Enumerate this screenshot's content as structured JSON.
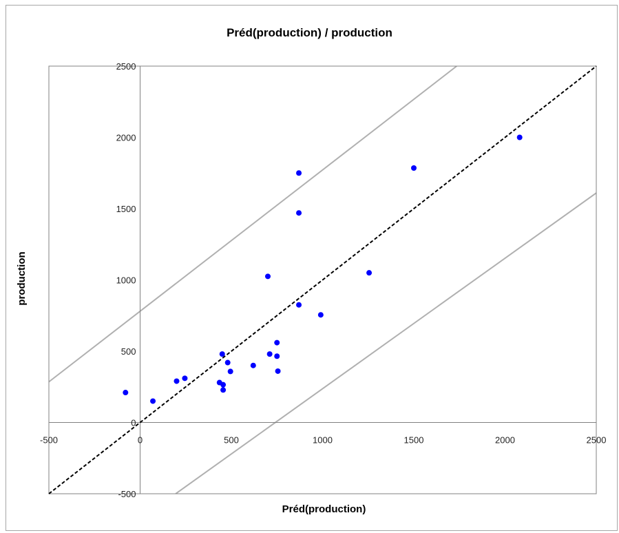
{
  "chart_data": {
    "type": "scatter",
    "title": "Préd(production) / production",
    "xlabel": "Préd(production)",
    "ylabel": "production",
    "xlim": [
      -500,
      2500
    ],
    "ylim": [
      -500,
      2500
    ],
    "xticks": [
      -500,
      0,
      500,
      1000,
      1500,
      2000,
      2500
    ],
    "yticks": [
      -500,
      0,
      500,
      1000,
      1500,
      2000,
      2500
    ],
    "grid": false,
    "legend": "none",
    "point_color": "#0000ff",
    "points": [
      {
        "x": -80,
        "y": 210
      },
      {
        "x": 70,
        "y": 150
      },
      {
        "x": 200,
        "y": 290
      },
      {
        "x": 245,
        "y": 310
      },
      {
        "x": 435,
        "y": 280
      },
      {
        "x": 450,
        "y": 480
      },
      {
        "x": 455,
        "y": 265
      },
      {
        "x": 455,
        "y": 228
      },
      {
        "x": 480,
        "y": 420
      },
      {
        "x": 495,
        "y": 358
      },
      {
        "x": 620,
        "y": 400
      },
      {
        "x": 700,
        "y": 1025
      },
      {
        "x": 710,
        "y": 480
      },
      {
        "x": 750,
        "y": 560
      },
      {
        "x": 750,
        "y": 465
      },
      {
        "x": 755,
        "y": 360
      },
      {
        "x": 870,
        "y": 1750
      },
      {
        "x": 870,
        "y": 1470
      },
      {
        "x": 870,
        "y": 825
      },
      {
        "x": 990,
        "y": 755
      },
      {
        "x": 1255,
        "y": 1050
      },
      {
        "x": 1500,
        "y": 1785
      },
      {
        "x": 2080,
        "y": 2000
      }
    ],
    "reference_line": {
      "style": "dashed",
      "color": "#000000",
      "slope": 1,
      "intercept": 0
    },
    "confidence_bands": {
      "color": "#b0b0b0",
      "upper": [
        [
          -500,
          285
        ],
        [
          1735,
          2500
        ]
      ],
      "lower": [
        [
          195,
          -500
        ],
        [
          2500,
          1610
        ]
      ]
    }
  }
}
